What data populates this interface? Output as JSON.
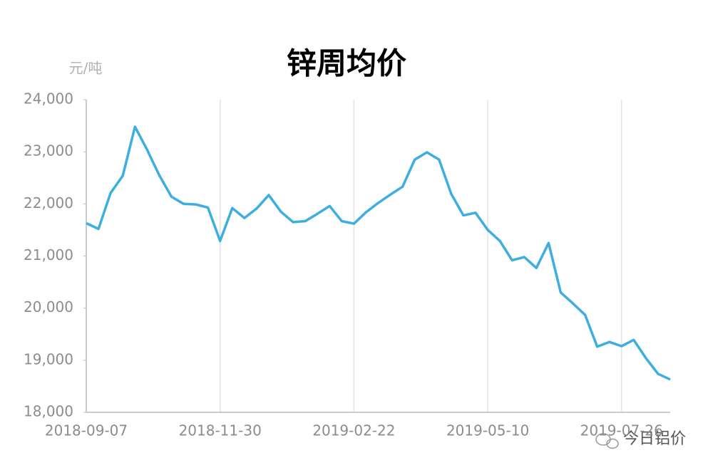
{
  "chart_data": {
    "type": "line",
    "title": "锌周均价",
    "y_unit": "元/吨",
    "watermark": "今日铝价",
    "categories": [
      "2018-09-07",
      null,
      null,
      null,
      null,
      null,
      null,
      null,
      null,
      null,
      null,
      "2018-11-30",
      null,
      null,
      null,
      null,
      null,
      null,
      null,
      null,
      null,
      null,
      "2019-02-22",
      null,
      null,
      null,
      null,
      null,
      null,
      null,
      null,
      null,
      null,
      "2019-05-10",
      null,
      null,
      null,
      null,
      null,
      null,
      null,
      null,
      null,
      null,
      "2019-07-26",
      null,
      null,
      null,
      null
    ],
    "values": [
      21630,
      21520,
      22210,
      22540,
      23480,
      23040,
      22550,
      22140,
      22000,
      21990,
      21930,
      21290,
      21920,
      21730,
      21910,
      22170,
      21850,
      21650,
      21670,
      21810,
      21960,
      21670,
      21620,
      21840,
      22020,
      22180,
      22330,
      22850,
      22990,
      22850,
      22190,
      21780,
      21830,
      21500,
      21290,
      20920,
      20980,
      20770,
      21250,
      20300,
      20090,
      19870,
      19260,
      19350,
      19270,
      19390,
      19040,
      18740,
      18630
    ],
    "color": "#3daee0",
    "ylim": [
      18000,
      24000
    ],
    "yticks": [
      {
        "value": 18000,
        "label": "18,000"
      },
      {
        "value": 19000,
        "label": "19,000"
      },
      {
        "value": 20000,
        "label": "20,000"
      },
      {
        "value": 21000,
        "label": "21,000"
      },
      {
        "value": 22000,
        "label": "22,000"
      },
      {
        "value": 23000,
        "label": "23,000"
      },
      {
        "value": 24000,
        "label": "24,000"
      }
    ],
    "grid": "x"
  }
}
